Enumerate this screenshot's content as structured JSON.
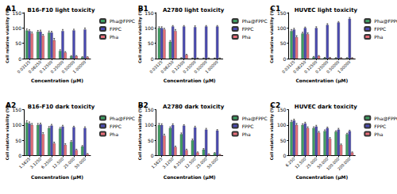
{
  "chart_data": [
    {
      "type": "bar",
      "panel": "A1",
      "title": "B16-F10 light toxicity",
      "x_label": "Concentration (μM)",
      "y_label": "Cell relative viability (%)",
      "categories": [
        "0.03125",
        "0.06250",
        "0.12500",
        "0.25000",
        "0.50000",
        "1.00000"
      ],
      "series": [
        {
          "name": "Pha@FPPC",
          "color": "#3f9f63",
          "values": [
            92,
            88,
            85,
            25,
            8,
            5
          ],
          "errors": [
            5,
            4,
            5,
            4,
            2,
            1
          ]
        },
        {
          "name": "FPPC",
          "color": "#4b4bb3",
          "values": [
            90,
            88,
            85,
            90,
            92,
            95
          ],
          "errors": [
            4,
            5,
            4,
            5,
            4,
            5
          ]
        },
        {
          "name": "Pha",
          "color": "#e86f7a",
          "values": [
            82,
            75,
            60,
            20,
            8,
            5
          ],
          "errors": [
            5,
            4,
            6,
            3,
            2,
            1
          ]
        }
      ],
      "ylim": [
        0,
        150
      ],
      "yticks": [
        0,
        50,
        100,
        150
      ],
      "grid": false,
      "legend": "right"
    },
    {
      "type": "bar",
      "panel": "B1",
      "title": "A2780 light toxicity",
      "x_label": "Concentration (μM)",
      "y_label": "Cell relative viability (%)",
      "categories": [
        "0.03125",
        "0.06250",
        "0.12500",
        "0.25000",
        "0.50000",
        "1.00000"
      ],
      "series": [
        {
          "name": "Pha@FPPC",
          "color": "#3f9f63",
          "values": [
            100,
            55,
            2,
            1,
            1,
            1
          ],
          "errors": [
            4,
            4,
            1,
            1,
            1,
            1
          ]
        },
        {
          "name": "FPPC",
          "color": "#4b4bb3",
          "values": [
            100,
            105,
            105,
            103,
            105,
            105
          ],
          "errors": [
            4,
            3,
            3,
            4,
            3,
            3
          ]
        },
        {
          "name": "Pha",
          "color": "#e86f7a",
          "values": [
            95,
            90,
            12,
            1,
            1,
            1
          ],
          "errors": [
            4,
            5,
            2,
            1,
            1,
            1
          ]
        }
      ],
      "ylim": [
        0,
        150
      ],
      "yticks": [
        0,
        50,
        100,
        150
      ],
      "grid": false,
      "legend": "right"
    },
    {
      "type": "bar",
      "panel": "C1",
      "title": "HUVEC light toxicity",
      "x_label": "Concentration (μM)",
      "y_label": "Cell relative viability (%)",
      "categories": [
        "0.03125",
        "0.06250",
        "0.12500",
        "0.25000",
        "0.50000",
        "1.00000"
      ],
      "series": [
        {
          "name": "Pha@FPPC",
          "color": "#3f9f63",
          "values": [
            90,
            82,
            5,
            3,
            2,
            2
          ],
          "errors": [
            5,
            4,
            2,
            1,
            1,
            1
          ]
        },
        {
          "name": "FPPC",
          "color": "#4b4bb3",
          "values": [
            95,
            100,
            100,
            110,
            118,
            130
          ],
          "errors": [
            4,
            3,
            4,
            4,
            3,
            4
          ]
        },
        {
          "name": "Pha",
          "color": "#e86f7a",
          "values": [
            70,
            80,
            8,
            3,
            2,
            2
          ],
          "errors": [
            5,
            4,
            2,
            1,
            1,
            1
          ]
        }
      ],
      "ylim": [
        0,
        150
      ],
      "yticks": [
        0,
        50,
        100,
        150
      ],
      "grid": false,
      "legend": "right"
    },
    {
      "type": "bar",
      "panel": "A2",
      "title": "B16-F10 dark toxicity",
      "x_label": "Concentration (μM)",
      "y_label": "Cell relative viability (%)",
      "categories": [
        "1.5625",
        "3.1250",
        "6.2500",
        "12.500",
        "25.000",
        "50.000"
      ],
      "series": [
        {
          "name": "Pha@FPPC",
          "color": "#3f9f63",
          "values": [
            108,
            100,
            90,
            88,
            45,
            30
          ],
          "errors": [
            6,
            5,
            5,
            4,
            4,
            3
          ]
        },
        {
          "name": "FPPC",
          "color": "#4b4bb3",
          "values": [
            105,
            102,
            98,
            95,
            93,
            90
          ],
          "errors": [
            5,
            4,
            4,
            4,
            3,
            4
          ]
        },
        {
          "name": "Pha",
          "color": "#e86f7a",
          "values": [
            100,
            70,
            40,
            35,
            18,
            5
          ],
          "errors": [
            5,
            5,
            4,
            4,
            3,
            2
          ]
        }
      ],
      "ylim": [
        0,
        150
      ],
      "yticks": [
        0,
        50,
        100,
        150
      ],
      "grid": false,
      "legend": "right"
    },
    {
      "type": "bar",
      "panel": "B2",
      "title": "A2780 dark toxicity",
      "x_label": "Concentration (μM)",
      "y_label": "Cell relative viability (%)",
      "categories": [
        "1.5625",
        "3.1250",
        "6.2500",
        "12.500",
        "25.000",
        "50.000"
      ],
      "series": [
        {
          "name": "Pha@FPPC",
          "color": "#3f9f63",
          "values": [
            100,
            90,
            70,
            50,
            20,
            8
          ],
          "errors": [
            5,
            4,
            4,
            4,
            3,
            2
          ]
        },
        {
          "name": "FPPC",
          "color": "#4b4bb3",
          "values": [
            100,
            100,
            98,
            92,
            85,
            82
          ],
          "errors": [
            4,
            4,
            3,
            4,
            4,
            3
          ]
        },
        {
          "name": "Pha",
          "color": "#e86f7a",
          "values": [
            65,
            28,
            18,
            10,
            5,
            3
          ],
          "errors": [
            5,
            3,
            3,
            2,
            1,
            1
          ]
        }
      ],
      "ylim": [
        0,
        150
      ],
      "yticks": [
        0,
        50,
        100,
        150
      ],
      "grid": false,
      "legend": "right"
    },
    {
      "type": "bar",
      "panel": "C2",
      "title": "HUVEC dark toxicity",
      "x_label": "Concentration (μM)",
      "y_label": "Cell relative viability (%)",
      "categories": [
        "6.250",
        "12.500",
        "25.000",
        "50.000",
        "100.000",
        "200.000"
      ],
      "series": [
        {
          "name": "Pha@FPPC",
          "color": "#3f9f63",
          "values": [
            110,
            100,
            90,
            80,
            78,
            70
          ],
          "errors": [
            5,
            4,
            4,
            4,
            3,
            3
          ]
        },
        {
          "name": "FPPC",
          "color": "#4b4bb3",
          "values": [
            115,
            105,
            95,
            90,
            85,
            80
          ],
          "errors": [
            4,
            4,
            4,
            3,
            4,
            3
          ]
        },
        {
          "name": "Pha",
          "color": "#e86f7a",
          "values": [
            100,
            90,
            75,
            55,
            35,
            10
          ],
          "errors": [
            5,
            4,
            4,
            4,
            3,
            2
          ]
        }
      ],
      "ylim": [
        0,
        150
      ],
      "yticks": [
        0,
        50,
        100,
        150
      ],
      "grid": false,
      "legend": "right"
    }
  ]
}
